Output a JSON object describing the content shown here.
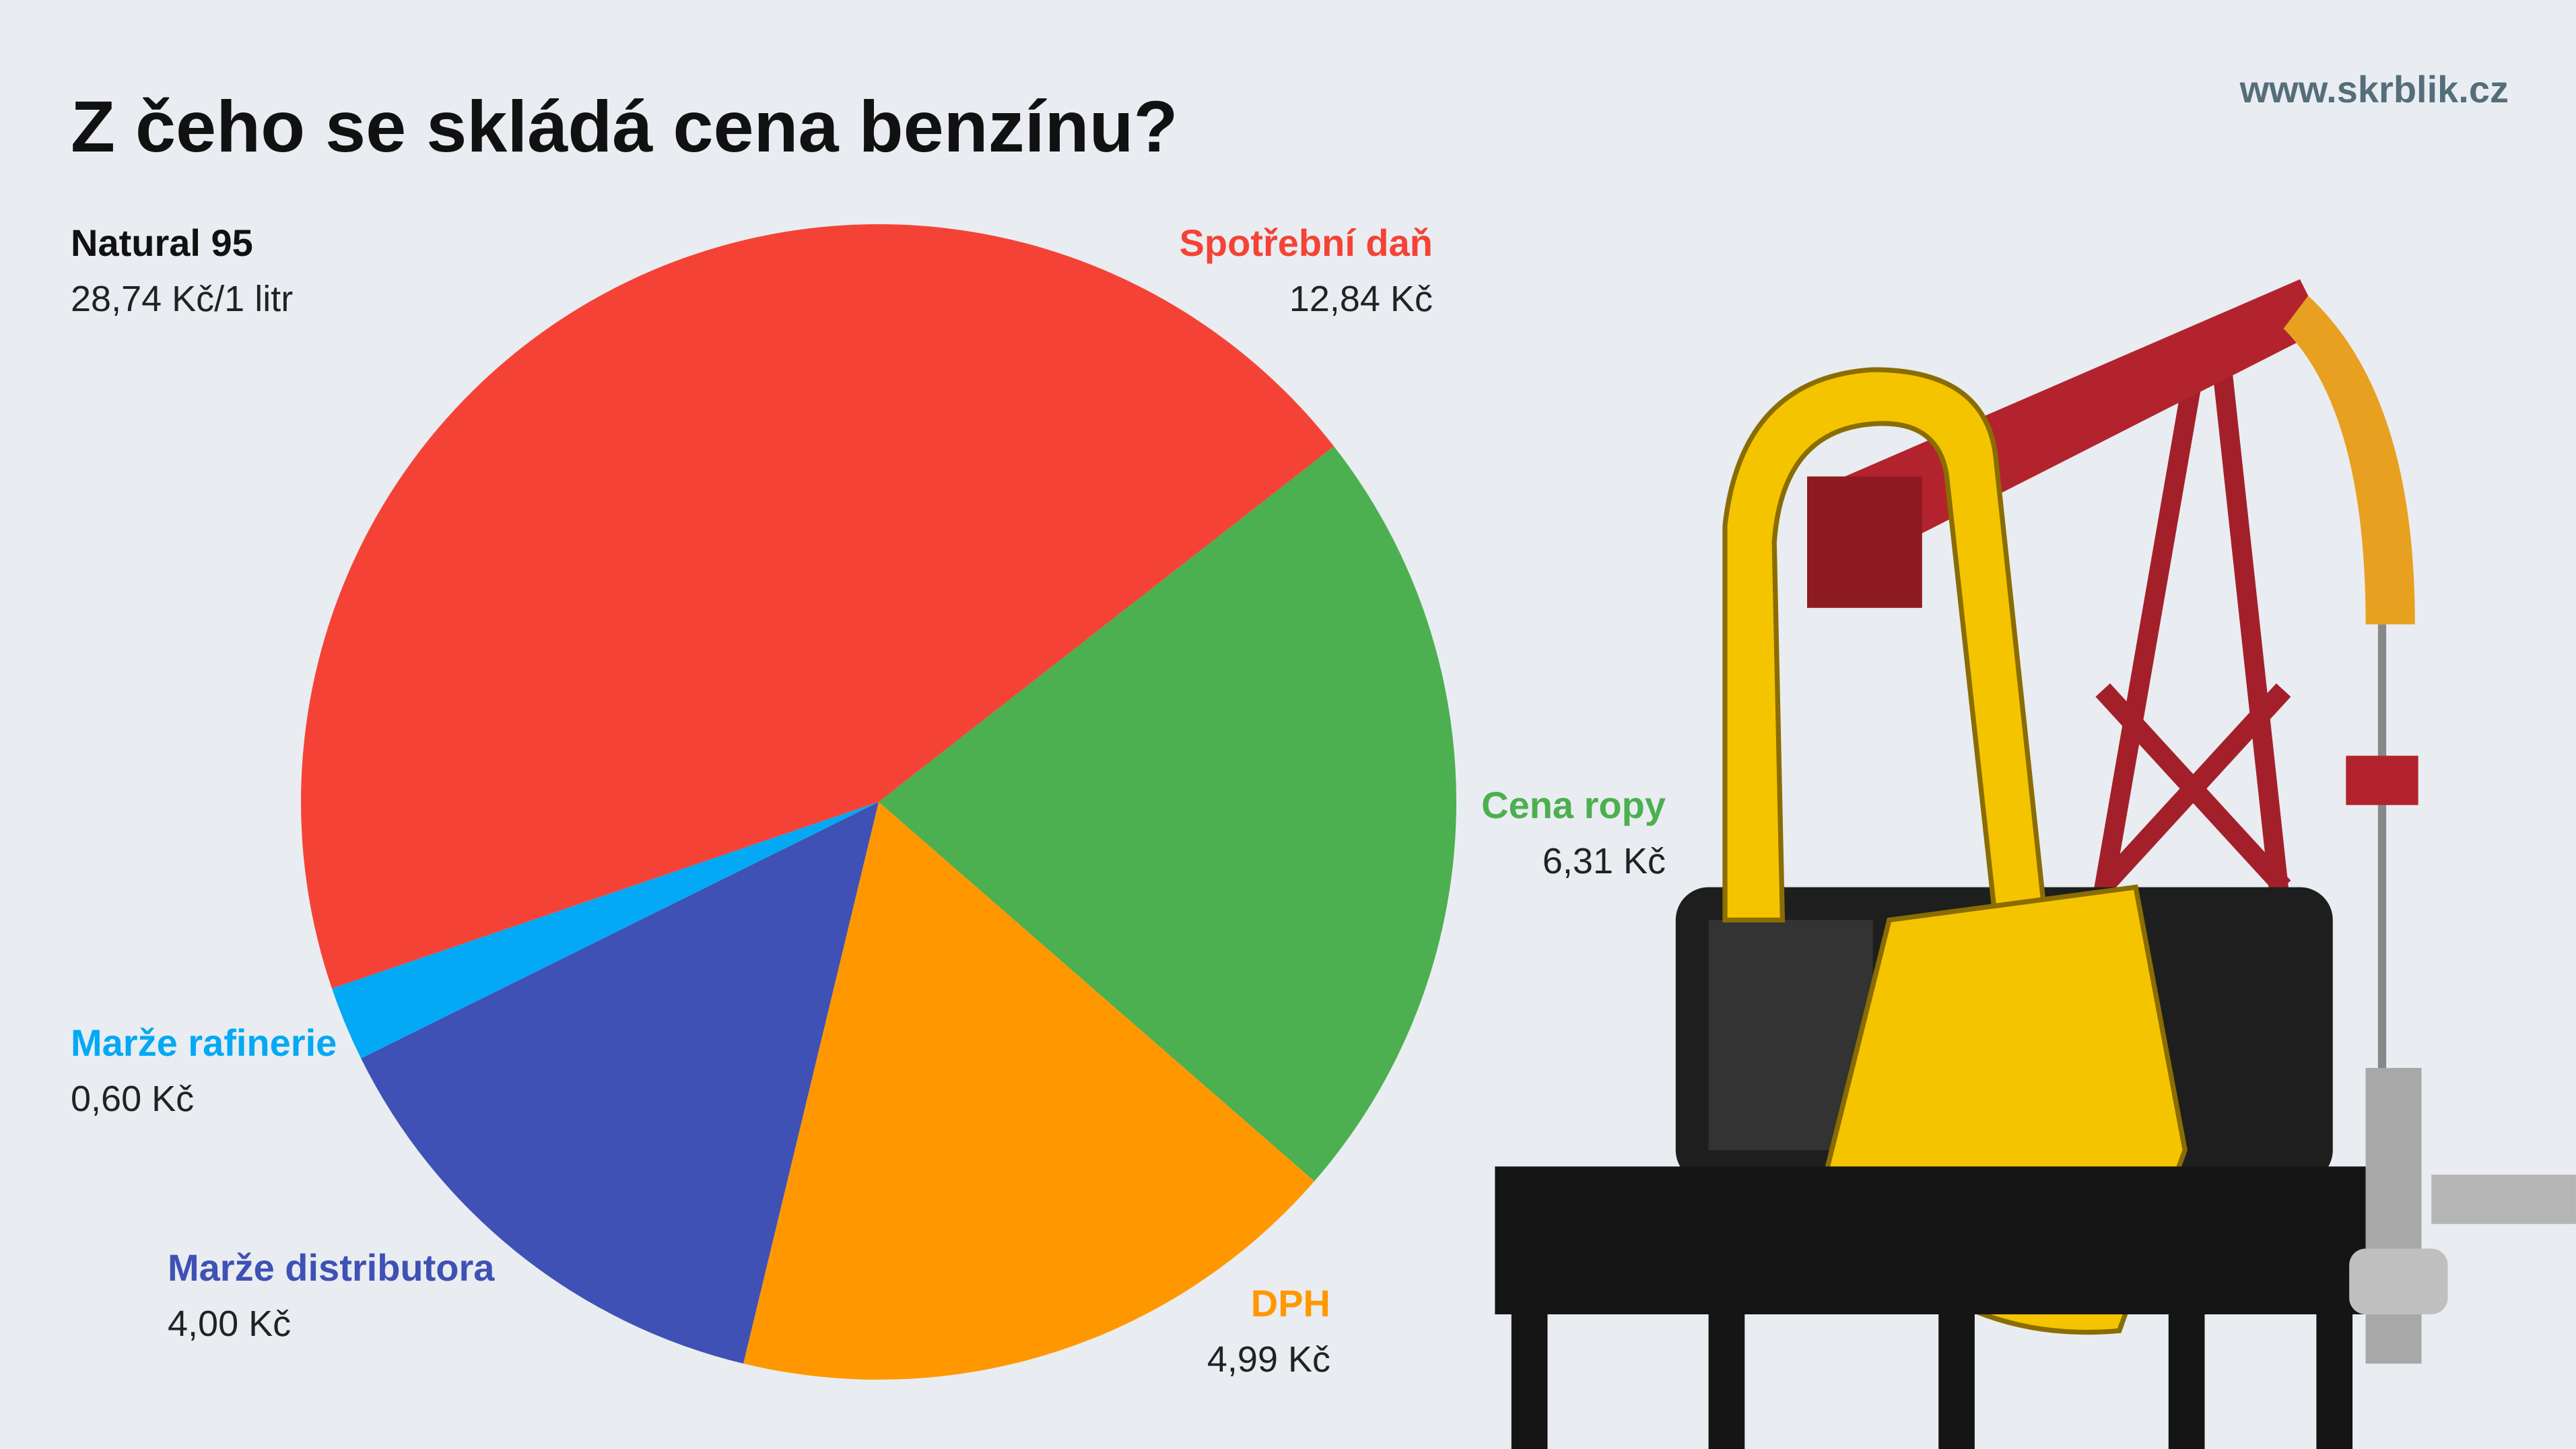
{
  "chart_data": {
    "type": "pie",
    "title": "Z čeho se skládá cena benzínu?",
    "source": "www.skrblik.cz",
    "subtitle": "Natural 95",
    "note": "28,74 Kč/1 litr",
    "categories": [
      "Cena ropy",
      "DPH",
      "Marže distributora",
      "Marže rafinerie",
      "Spotřební daň"
    ],
    "values": [
      6.31,
      4.99,
      4.0,
      0.6,
      12.84
    ],
    "value_labels": [
      "6,31 Kč",
      "4,99 Kč",
      "4,00 Kč",
      "0,60 Kč",
      "12,84 Kč"
    ],
    "colors": [
      "#4caf50",
      "#ff9800",
      "#3f51b5",
      "#03a9f4",
      "#f44336"
    ]
  }
}
